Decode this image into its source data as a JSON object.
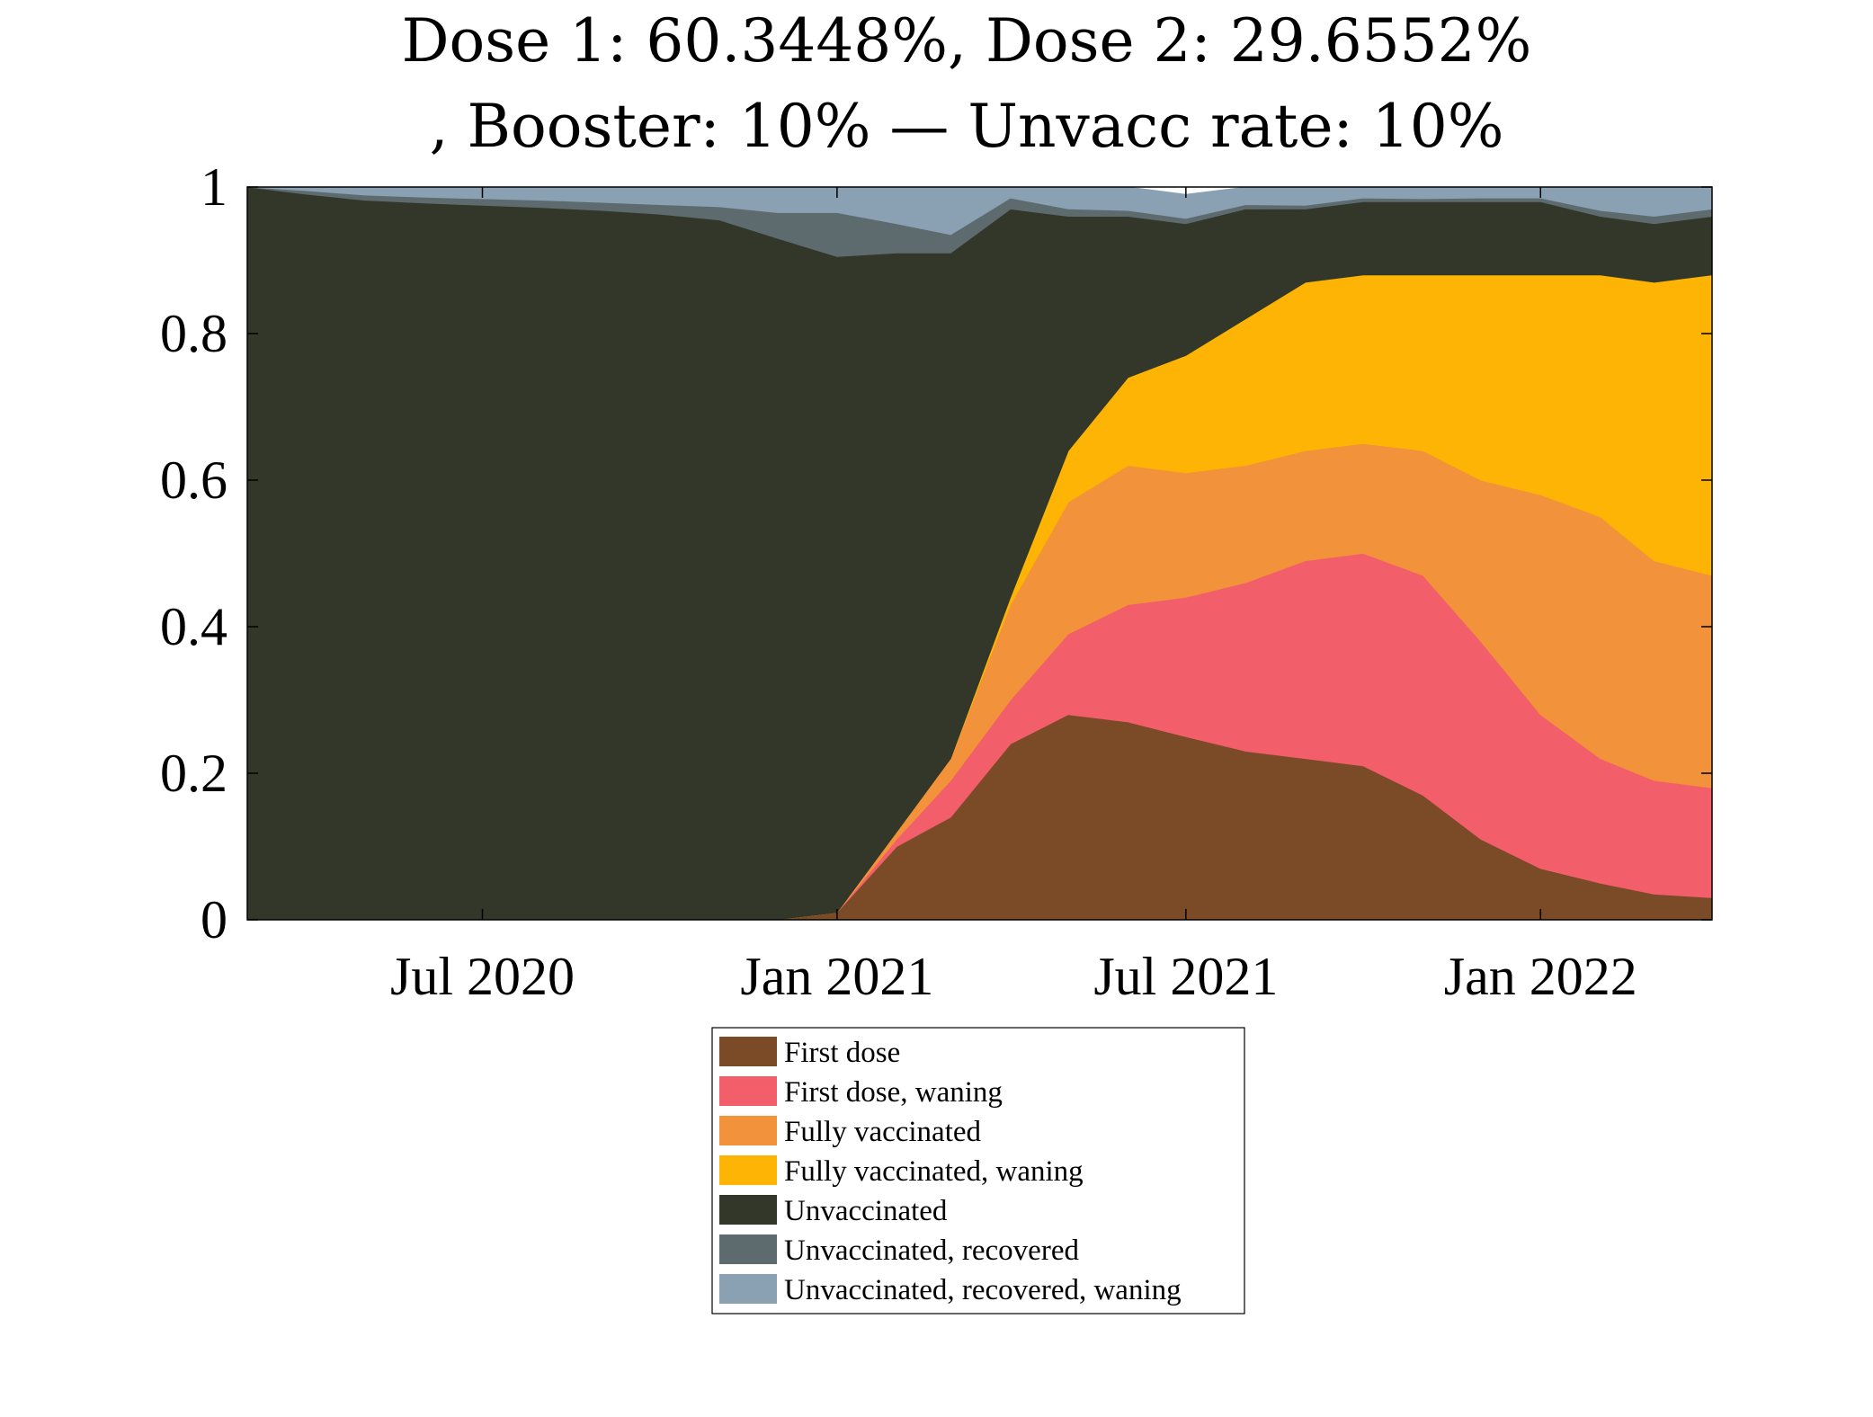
{
  "chart_data": {
    "type": "area",
    "stacked": true,
    "title_lines": [
      "Dose 1: 60.3448%, Dose 2: 29.6552%",
      ", Booster: 10% — Unvacc rate: 10%"
    ],
    "xlabel": "",
    "ylabel": "",
    "ylim": [
      0,
      1
    ],
    "xlim": [
      "2020-03-01",
      "2022-03-31"
    ],
    "y_ticks": [
      0,
      0.2,
      0.4,
      0.6,
      0.8,
      1
    ],
    "y_tick_labels": [
      "0",
      "0.2",
      "0.4",
      "0.6",
      "0.8",
      "1"
    ],
    "x_ticks": [
      "2020-07-01",
      "2021-01-01",
      "2021-07-01",
      "2022-01-01"
    ],
    "x_tick_labels": [
      "Jul 2020",
      "Jan 2021",
      "Jul 2021",
      "Jan 2022"
    ],
    "grid": false,
    "legend_position": "bottom",
    "dates": [
      "2020-03-01",
      "2020-04-01",
      "2020-05-01",
      "2020-06-01",
      "2020-07-01",
      "2020-08-01",
      "2020-09-01",
      "2020-10-01",
      "2020-11-01",
      "2020-12-01",
      "2021-01-01",
      "2021-02-01",
      "2021-03-01",
      "2021-04-01",
      "2021-05-01",
      "2021-06-01",
      "2021-07-01",
      "2021-08-01",
      "2021-09-01",
      "2021-10-01",
      "2021-11-01",
      "2021-12-01",
      "2022-01-01",
      "2022-02-01",
      "2022-03-01",
      "2022-03-31"
    ],
    "series": [
      {
        "name": "First dose",
        "color": "#7b4a26",
        "values": [
          0,
          0,
          0,
          0,
          0,
          0,
          0,
          0,
          0,
          0,
          0.01,
          0.1,
          0.14,
          0.24,
          0.28,
          0.27,
          0.25,
          0.23,
          0.22,
          0.21,
          0.17,
          0.11,
          0.07,
          0.05,
          0.035,
          0.03
        ]
      },
      {
        "name": "First dose, waning",
        "color": "#f25e6a",
        "values": [
          0,
          0,
          0,
          0,
          0,
          0,
          0,
          0,
          0,
          0,
          0,
          0.01,
          0.05,
          0.06,
          0.11,
          0.16,
          0.19,
          0.23,
          0.27,
          0.29,
          0.3,
          0.27,
          0.21,
          0.17,
          0.155,
          0.15
        ]
      },
      {
        "name": "Fully vaccinated",
        "color": "#f2923a",
        "values": [
          0,
          0,
          0,
          0,
          0,
          0,
          0,
          0,
          0,
          0,
          0,
          0.01,
          0.03,
          0.13,
          0.18,
          0.19,
          0.17,
          0.16,
          0.15,
          0.15,
          0.17,
          0.22,
          0.3,
          0.33,
          0.3,
          0.29
        ]
      },
      {
        "name": "Fully vaccinated, waning",
        "color": "#fdb404",
        "values": [
          0,
          0,
          0,
          0,
          0,
          0,
          0,
          0,
          0,
          0,
          0,
          0,
          0,
          0.01,
          0.07,
          0.12,
          0.16,
          0.2,
          0.23,
          0.23,
          0.24,
          0.28,
          0.3,
          0.33,
          0.38,
          0.41
        ]
      },
      {
        "name": "Unvaccinated",
        "color": "#32372a",
        "values": [
          1,
          0.99,
          0.982,
          0.978,
          0.975,
          0.972,
          0.968,
          0.963,
          0.955,
          0.93,
          0.895,
          0.79,
          0.69,
          0.53,
          0.32,
          0.22,
          0.18,
          0.15,
          0.1,
          0.1,
          0.1,
          0.1,
          0.1,
          0.08,
          0.08,
          0.08
        ]
      },
      {
        "name": "Unvaccinated, recovered",
        "color": "#5e6b6e",
        "values": [
          0,
          0.005,
          0.007,
          0.008,
          0.009,
          0.01,
          0.011,
          0.013,
          0.018,
          0.035,
          0.06,
          0.04,
          0.025,
          0.015,
          0.01,
          0.008,
          0.007,
          0.006,
          0.005,
          0.005,
          0.004,
          0.005,
          0.005,
          0.008,
          0.01,
          0.01
        ]
      },
      {
        "name": "Unvaccinated, recovered, waning",
        "color": "#8aa1b4",
        "values": [
          0,
          0.005,
          0.011,
          0.014,
          0.016,
          0.018,
          0.021,
          0.024,
          0.027,
          0.035,
          0.045,
          0.05,
          0.065,
          0.015,
          0.03,
          0.032,
          0.033,
          0.024,
          0.025,
          0.015,
          0.016,
          0.018,
          0.015,
          0.032,
          0.04,
          0.03
        ]
      }
    ]
  }
}
